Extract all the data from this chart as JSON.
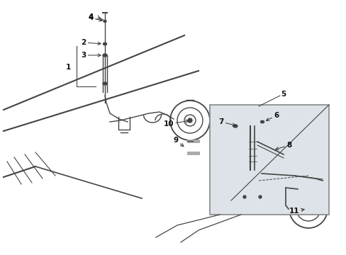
{
  "bg_color": "#ffffff",
  "fig_width": 4.89,
  "fig_height": 3.6,
  "dpi": 100,
  "line_color": "#444444",
  "box_color": "#dde3e8",
  "box_edge": "#888888",
  "arrow_color": "#333333",
  "label_color": "#111111"
}
